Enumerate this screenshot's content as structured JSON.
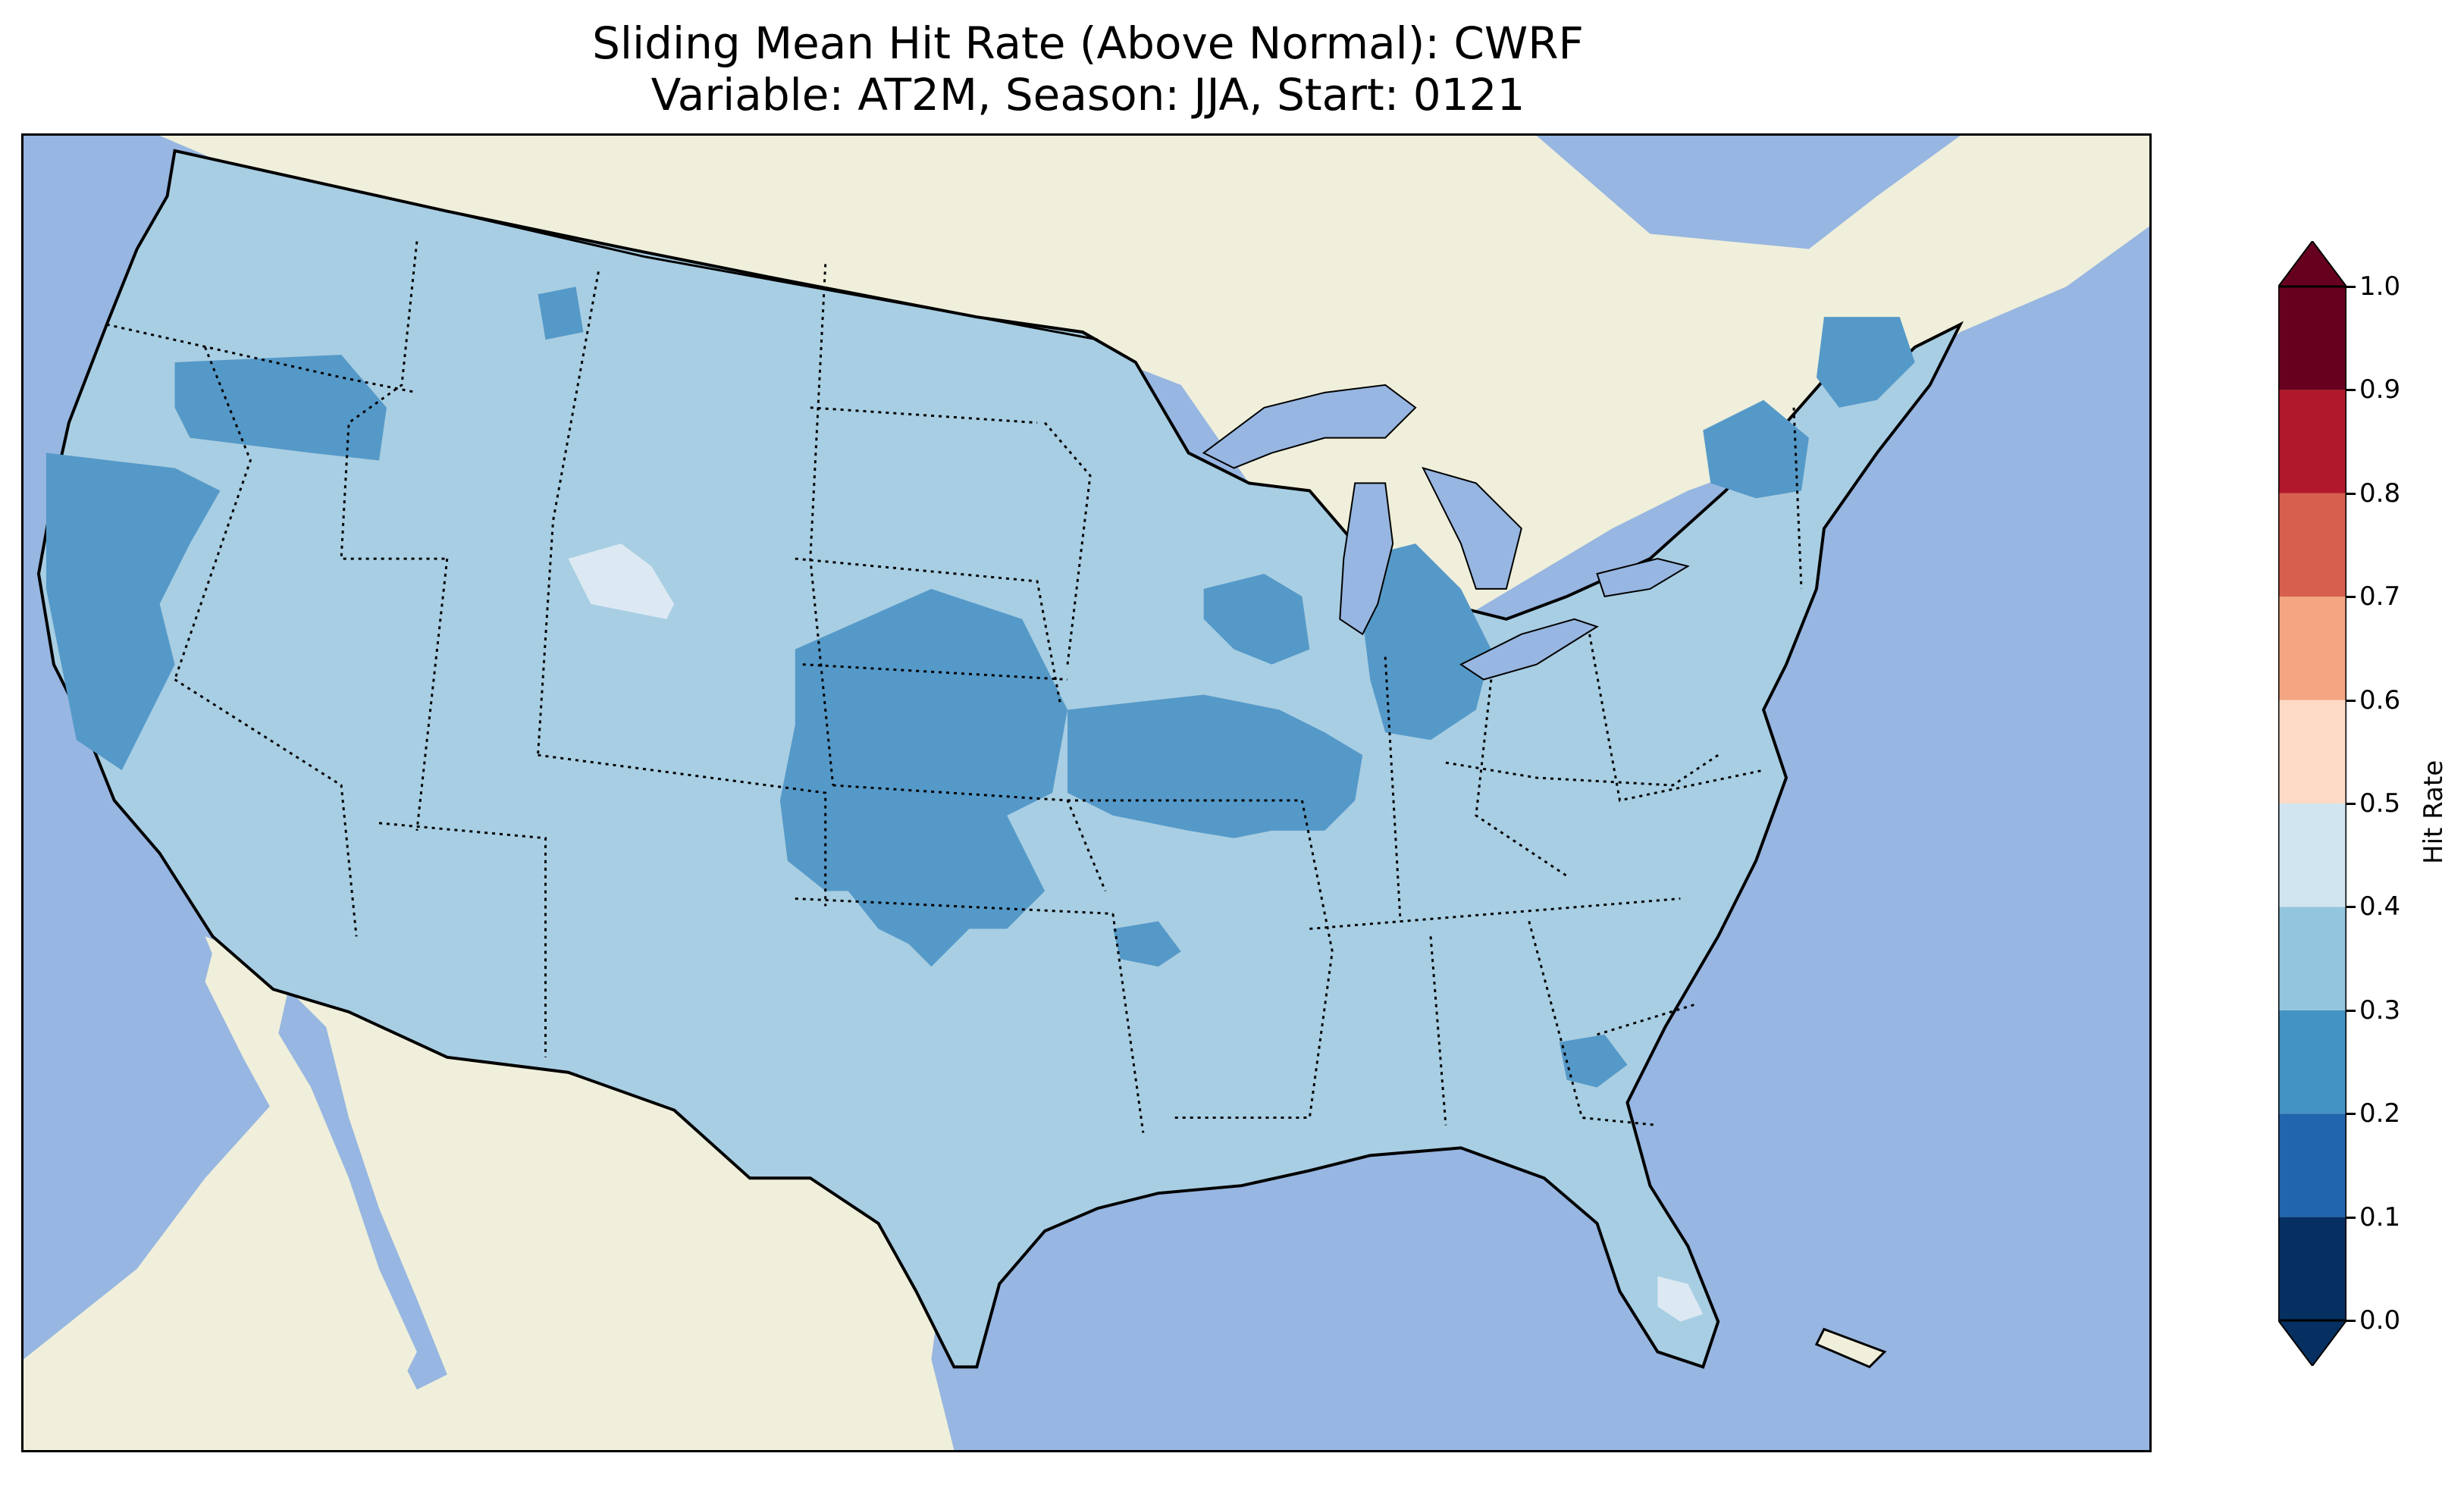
{
  "figure": {
    "title_line_1": "Sliding Mean Hit Rate (Above Normal): CWRF",
    "title_line_2": "Variable: AT2M, Season: JJA, Start: 0121"
  },
  "map": {
    "projection": "lambert-conformal",
    "region": "Contiguous United States",
    "ocean_color": "#97b6e1",
    "land_color": "#efefdb",
    "lake_color": "#97b6e1",
    "features": [
      "coastlines",
      "state-borders",
      "country-borders",
      "lakes"
    ]
  },
  "colorbar": {
    "label": "Hit Rate",
    "orientation": "vertical",
    "extend": "both",
    "ticks": [
      "0.0",
      "0.1",
      "0.2",
      "0.3",
      "0.4",
      "0.5",
      "0.6",
      "0.7",
      "0.8",
      "0.9",
      "1.0"
    ],
    "bins": [
      {
        "range": [
          0.0,
          0.1
        ],
        "color": "#053061"
      },
      {
        "range": [
          0.1,
          0.2
        ],
        "color": "#2166ac"
      },
      {
        "range": [
          0.2,
          0.3
        ],
        "color": "#4393c3"
      },
      {
        "range": [
          0.3,
          0.4
        ],
        "color": "#92c5de"
      },
      {
        "range": [
          0.4,
          0.5
        ],
        "color": "#d1e5f0"
      },
      {
        "range": [
          0.5,
          0.6
        ],
        "color": "#fddbc7"
      },
      {
        "range": [
          0.6,
          0.7
        ],
        "color": "#f4a582"
      },
      {
        "range": [
          0.7,
          0.8
        ],
        "color": "#d6604d"
      },
      {
        "range": [
          0.8,
          0.9
        ],
        "color": "#b2182b"
      },
      {
        "range": [
          0.9,
          1.0
        ],
        "color": "#67001f"
      }
    ]
  },
  "chart_data": {
    "type": "heatmap",
    "title": "Sliding Mean Hit Rate (Above Normal): CWRF\nVariable: AT2M, Season: JJA, Start: 0121",
    "colorbar_label": "Hit Rate",
    "value_range": [
      0.0,
      1.0
    ],
    "dominant_bin": [
      0.3,
      0.4
    ],
    "regions": [
      {
        "name": "Most of the contiguous US",
        "value_bin": [
          0.3,
          0.4
        ]
      },
      {
        "name": "Central Plains (Kansas, Oklahoma, Nebraska)",
        "value_bin": [
          0.2,
          0.3
        ]
      },
      {
        "name": "Iowa / Illinois / Missouri",
        "value_bin": [
          0.2,
          0.3
        ]
      },
      {
        "name": "Lower Michigan",
        "value_bin": [
          0.2,
          0.3
        ]
      },
      {
        "name": "Wisconsin",
        "value_bin": [
          0.2,
          0.3
        ]
      },
      {
        "name": "Northern California / Oregon coast",
        "value_bin": [
          0.2,
          0.3
        ]
      },
      {
        "name": "Idaho / eastern Oregon",
        "value_bin": [
          0.2,
          0.3
        ]
      },
      {
        "name": "New York / New England",
        "value_bin": [
          0.2,
          0.3
        ]
      },
      {
        "name": "Northern Georgia",
        "value_bin": [
          0.2,
          0.3
        ]
      },
      {
        "name": "Arkansas (small patch)",
        "value_bin": [
          0.2,
          0.3
        ]
      },
      {
        "name": "Central Wyoming",
        "value_bin": [
          0.4,
          0.5
        ]
      },
      {
        "name": "South Florida",
        "value_bin": [
          0.4,
          0.5
        ]
      }
    ]
  }
}
